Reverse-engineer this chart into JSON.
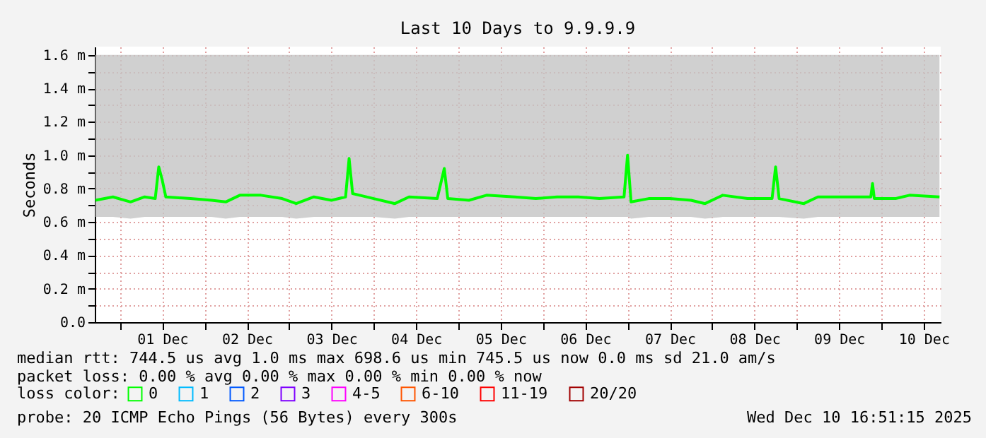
{
  "chart_data": {
    "type": "line",
    "title": "Last 10 Days to 9.9.9.9",
    "ylabel": "Seconds",
    "legend_title": "loss color:",
    "legend": "bottom left",
    "grid": true,
    "x": [
      "2025-11-30T17:00",
      "2025-11-30T22:00",
      "2025-12-01T03:00",
      "2025-12-01T07:00",
      "2025-12-01T10:00",
      "2025-12-01T11:00",
      "2025-12-01T12:00",
      "2025-12-01T13:00",
      "2025-12-01T20:00",
      "2025-12-02T02:00",
      "2025-12-02T06:00",
      "2025-12-02T10:00",
      "2025-12-02T16:00",
      "2025-12-02T22:00",
      "2025-12-03T02:00",
      "2025-12-03T07:00",
      "2025-12-03T12:00",
      "2025-12-03T16:00",
      "2025-12-03T17:00",
      "2025-12-03T18:00",
      "2025-12-04T00:00",
      "2025-12-04T06:00",
      "2025-12-04T10:00",
      "2025-12-04T18:00",
      "2025-12-04T20:00",
      "2025-12-04T21:00",
      "2025-12-05T03:00",
      "2025-12-05T08:00",
      "2025-12-05T16:00",
      "2025-12-05T22:00",
      "2025-12-06T04:00",
      "2025-12-06T10:00",
      "2025-12-06T16:00",
      "2025-12-06T23:00",
      "2025-12-07T00:00",
      "2025-12-07T01:00",
      "2025-12-07T06:00",
      "2025-12-07T12:00",
      "2025-12-07T18:00",
      "2025-12-07T22:00",
      "2025-12-08T03:00",
      "2025-12-08T10:00",
      "2025-12-08T17:00",
      "2025-12-08T18:00",
      "2025-12-08T19:00",
      "2025-12-09T02:00",
      "2025-12-09T06:00",
      "2025-12-09T14:00",
      "2025-12-09T21:00",
      "2025-12-09T21:30",
      "2025-12-09T22:00",
      "2025-12-10T04:00",
      "2025-12-10T08:00",
      "2025-12-10T16:30"
    ],
    "series": [
      {
        "name": "0",
        "color": "#00ff00",
        "values": [
          0.73,
          0.75,
          0.72,
          0.75,
          0.74,
          0.93,
          0.85,
          0.75,
          0.74,
          0.73,
          0.72,
          0.76,
          0.76,
          0.74,
          0.71,
          0.75,
          0.73,
          0.75,
          0.98,
          0.77,
          0.74,
          0.71,
          0.75,
          0.74,
          0.92,
          0.74,
          0.73,
          0.76,
          0.75,
          0.74,
          0.75,
          0.75,
          0.74,
          0.75,
          1.0,
          0.72,
          0.74,
          0.74,
          0.73,
          0.71,
          0.76,
          0.74,
          0.74,
          0.93,
          0.74,
          0.71,
          0.75,
          0.75,
          0.75,
          0.83,
          0.74,
          0.74,
          0.76,
          0.75
        ],
        "lower": [
          0.63,
          0.63,
          0.62,
          0.63,
          0.63,
          0.63,
          0.63,
          0.63,
          0.63,
          0.63,
          0.62,
          0.63,
          0.63,
          0.63,
          0.62,
          0.63,
          0.63,
          0.63,
          0.63,
          0.63,
          0.63,
          0.62,
          0.63,
          0.63,
          0.63,
          0.63,
          0.63,
          0.63,
          0.63,
          0.63,
          0.63,
          0.63,
          0.63,
          0.63,
          0.63,
          0.62,
          0.63,
          0.63,
          0.63,
          0.62,
          0.63,
          0.63,
          0.63,
          0.63,
          0.63,
          0.62,
          0.63,
          0.63,
          0.63,
          0.63,
          0.63,
          0.63,
          0.63,
          0.63
        ],
        "upper": [
          1.6,
          1.6,
          1.6,
          1.6,
          1.6,
          1.6,
          1.6,
          1.6,
          1.6,
          1.6,
          1.6,
          1.6,
          1.6,
          1.6,
          1.6,
          1.6,
          1.6,
          1.6,
          1.6,
          1.6,
          1.6,
          1.6,
          1.6,
          1.6,
          1.6,
          1.6,
          1.6,
          1.6,
          1.6,
          1.6,
          1.6,
          1.6,
          1.6,
          1.6,
          1.6,
          1.6,
          1.6,
          1.6,
          1.6,
          1.6,
          1.6,
          1.6,
          1.6,
          1.6,
          1.6,
          1.6,
          1.6,
          1.6,
          1.6,
          1.6,
          1.6,
          1.6,
          1.6,
          1.6
        ]
      },
      {
        "name": "1",
        "color": "#00bbff",
        "values": [
          null,
          null,
          null,
          null,
          null,
          null,
          null,
          null,
          null,
          null,
          null,
          null,
          null,
          null,
          null,
          null,
          null,
          null,
          null,
          null,
          null,
          null,
          null,
          null,
          null,
          null,
          null,
          null,
          null,
          null,
          null,
          null,
          null,
          null,
          null,
          null,
          null,
          null,
          null,
          null,
          null,
          null,
          null,
          null,
          null,
          null,
          null,
          null,
          null,
          null,
          null,
          null,
          null,
          null
        ]
      },
      {
        "name": "2",
        "color": "#0059ff",
        "values": [
          null,
          null,
          null,
          null,
          null,
          null,
          null,
          null,
          null,
          null,
          null,
          null,
          null,
          null,
          null,
          null,
          null,
          null,
          null,
          null,
          null,
          null,
          null,
          null,
          null,
          null,
          null,
          null,
          null,
          null,
          null,
          null,
          null,
          null,
          null,
          null,
          null,
          null,
          null,
          null,
          null,
          null,
          null,
          null,
          null,
          null,
          null,
          null,
          null,
          null,
          null,
          null,
          null,
          null
        ]
      },
      {
        "name": "3",
        "color": "#7e00ff",
        "values": [
          null,
          null,
          null,
          null,
          null,
          null,
          null,
          null,
          null,
          null,
          null,
          null,
          null,
          null,
          null,
          null,
          null,
          null,
          null,
          null,
          null,
          null,
          null,
          null,
          null,
          null,
          null,
          null,
          null,
          null,
          null,
          null,
          null,
          null,
          null,
          null,
          null,
          null,
          null,
          null,
          null,
          null,
          null,
          null,
          null,
          null,
          null,
          null,
          null,
          null,
          null,
          null,
          null,
          null
        ]
      },
      {
        "name": "4-5",
        "color": "#ff00ff",
        "values": [
          null,
          null,
          null,
          null,
          null,
          null,
          null,
          null,
          null,
          null,
          null,
          null,
          null,
          null,
          null,
          null,
          null,
          null,
          null,
          null,
          null,
          null,
          null,
          null,
          null,
          null,
          null,
          null,
          null,
          null,
          null,
          null,
          null,
          null,
          null,
          null,
          null,
          null,
          null,
          null,
          null,
          null,
          null,
          null,
          null,
          null,
          null,
          null,
          null,
          null,
          null,
          null,
          null,
          null
        ]
      },
      {
        "name": "6-10",
        "color": "#ff5500",
        "values": [
          null,
          null,
          null,
          null,
          null,
          null,
          null,
          null,
          null,
          null,
          null,
          null,
          null,
          null,
          null,
          null,
          null,
          null,
          null,
          null,
          null,
          null,
          null,
          null,
          null,
          null,
          null,
          null,
          null,
          null,
          null,
          null,
          null,
          null,
          null,
          null,
          null,
          null,
          null,
          null,
          null,
          null,
          null,
          null,
          null,
          null,
          null,
          null,
          null,
          null,
          null,
          null,
          null,
          null
        ]
      },
      {
        "name": "11-19",
        "color": "#ff0000",
        "values": [
          null,
          null,
          null,
          null,
          null,
          null,
          null,
          null,
          null,
          null,
          null,
          null,
          null,
          null,
          null,
          null,
          null,
          null,
          null,
          null,
          null,
          null,
          null,
          null,
          null,
          null,
          null,
          null,
          null,
          null,
          null,
          null,
          null,
          null,
          null,
          null,
          null,
          null,
          null,
          null,
          null,
          null,
          null,
          null,
          null,
          null,
          null,
          null,
          null,
          null,
          null,
          null,
          null,
          null
        ]
      },
      {
        "name": "20/20",
        "color": "#a10000",
        "values": [
          null,
          null,
          null,
          null,
          null,
          null,
          null,
          null,
          null,
          null,
          null,
          null,
          null,
          null,
          null,
          null,
          null,
          null,
          null,
          null,
          null,
          null,
          null,
          null,
          null,
          null,
          null,
          null,
          null,
          null,
          null,
          null,
          null,
          null,
          null,
          null,
          null,
          null,
          null,
          null,
          null,
          null,
          null,
          null,
          null,
          null,
          null,
          null,
          null,
          null,
          null,
          null,
          null,
          null
        ]
      }
    ],
    "xlim": [
      "2025-11-30T16:51",
      "2025-12-10T16:51"
    ],
    "xticks": [
      {
        "value": "2025-12-01T00:00",
        "label": null
      },
      {
        "value": "2025-12-01T12:00",
        "label": "01 Dec"
      },
      {
        "value": "2025-12-02T00:00",
        "label": null
      },
      {
        "value": "2025-12-02T12:00",
        "label": "02 Dec"
      },
      {
        "value": "2025-12-03T00:00",
        "label": null
      },
      {
        "value": "2025-12-03T12:00",
        "label": "03 Dec"
      },
      {
        "value": "2025-12-04T00:00",
        "label": null
      },
      {
        "value": "2025-12-04T12:00",
        "label": "04 Dec"
      },
      {
        "value": "2025-12-05T00:00",
        "label": null
      },
      {
        "value": "2025-12-05T12:00",
        "label": "05 Dec"
      },
      {
        "value": "2025-12-06T00:00",
        "label": null
      },
      {
        "value": "2025-12-06T12:00",
        "label": "06 Dec"
      },
      {
        "value": "2025-12-07T00:00",
        "label": null
      },
      {
        "value": "2025-12-07T12:00",
        "label": "07 Dec"
      },
      {
        "value": "2025-12-08T00:00",
        "label": null
      },
      {
        "value": "2025-12-08T12:00",
        "label": "08 Dec"
      },
      {
        "value": "2025-12-09T00:00",
        "label": null
      },
      {
        "value": "2025-12-09T12:00",
        "label": "09 Dec"
      },
      {
        "value": "2025-12-10T00:00",
        "label": null
      },
      {
        "value": "2025-12-10T12:00",
        "label": "10 Dec"
      }
    ],
    "ylim": [
      0,
      1.65
    ],
    "yticks": [
      {
        "value": 0,
        "label": "0.0"
      },
      {
        "value": 0.1,
        "label": null
      },
      {
        "value": 0.2,
        "label": "0.2 m"
      },
      {
        "value": 0.3,
        "label": null
      },
      {
        "value": 0.4,
        "label": "0.4 m"
      },
      {
        "value": 0.5,
        "label": null
      },
      {
        "value": 0.6,
        "label": "0.6 m"
      },
      {
        "value": 0.7,
        "label": null
      },
      {
        "value": 0.8,
        "label": "0.8 m"
      },
      {
        "value": 0.9,
        "label": null
      },
      {
        "value": 1.0,
        "label": "1.0 m"
      },
      {
        "value": 1.1,
        "label": null
      },
      {
        "value": 1.2,
        "label": "1.2 m"
      },
      {
        "value": 1.3,
        "label": null
      },
      {
        "value": 1.4,
        "label": "1.4 m"
      },
      {
        "value": 1.5,
        "label": null
      },
      {
        "value": 1.6,
        "label": "1.6 m"
      }
    ],
    "annotations": [
      "median rtt:  744.5 us avg  1.0 ms max  698.6 us min  745.5 us now  0.0 ms sd  21.0  am/s",
      "packet loss: 0.00 % avg  0.00 % max  0.00 % min  0.00 % now",
      "probe:       20 ICMP Echo Pings (56 Bytes) every 300s",
      "Wed Dec 10 16:51:15 2025"
    ]
  }
}
